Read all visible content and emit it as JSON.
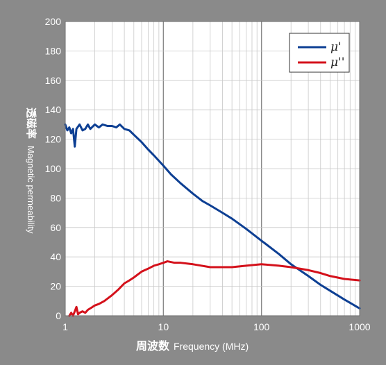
{
  "chart_data": {
    "type": "line",
    "xlabel_ja": "周波数",
    "xlabel_en": "Frequency (MHz)",
    "ylabel_ja": "透磁率",
    "ylabel_en": "Magnetic permeability",
    "x_scale": "log",
    "xlim": [
      1,
      1000
    ],
    "ylim": [
      0,
      200
    ],
    "x_ticks": [
      1,
      10,
      100,
      1000
    ],
    "x_tick_labels": [
      "1",
      "10",
      "100",
      "1000"
    ],
    "y_ticks": [
      0,
      20,
      40,
      60,
      80,
      100,
      120,
      140,
      160,
      180,
      200
    ],
    "y_tick_labels": [
      "0",
      "20",
      "40",
      "60",
      "80",
      "100",
      "120",
      "140",
      "160",
      "180",
      "200"
    ],
    "grid": true,
    "legend_position": "top-right",
    "series": [
      {
        "name": "μ'",
        "color": "#0d3f93",
        "points": [
          [
            1.0,
            130
          ],
          [
            1.05,
            126
          ],
          [
            1.1,
            128
          ],
          [
            1.15,
            124
          ],
          [
            1.2,
            127
          ],
          [
            1.25,
            115
          ],
          [
            1.3,
            127
          ],
          [
            1.4,
            130
          ],
          [
            1.5,
            126
          ],
          [
            1.6,
            127
          ],
          [
            1.7,
            130
          ],
          [
            1.8,
            127
          ],
          [
            2.0,
            130
          ],
          [
            2.2,
            128
          ],
          [
            2.4,
            130
          ],
          [
            2.7,
            129
          ],
          [
            3.0,
            129
          ],
          [
            3.3,
            128
          ],
          [
            3.6,
            130
          ],
          [
            4.0,
            127
          ],
          [
            4.5,
            126
          ],
          [
            5.0,
            123
          ],
          [
            6.0,
            118
          ],
          [
            7.0,
            113
          ],
          [
            8.0,
            109
          ],
          [
            10,
            102
          ],
          [
            12,
            96
          ],
          [
            15,
            90
          ],
          [
            20,
            83
          ],
          [
            25,
            78
          ],
          [
            30,
            75
          ],
          [
            40,
            70
          ],
          [
            50,
            66
          ],
          [
            70,
            59
          ],
          [
            100,
            51
          ],
          [
            150,
            42
          ],
          [
            200,
            35
          ],
          [
            300,
            27
          ],
          [
            400,
            21
          ],
          [
            500,
            17
          ],
          [
            700,
            11
          ],
          [
            1000,
            5
          ]
        ]
      },
      {
        "name": "μ''",
        "color": "#d4111b",
        "points": [
          [
            1.1,
            0
          ],
          [
            1.15,
            2
          ],
          [
            1.2,
            0
          ],
          [
            1.25,
            3
          ],
          [
            1.3,
            6
          ],
          [
            1.35,
            1
          ],
          [
            1.4,
            2
          ],
          [
            1.5,
            3
          ],
          [
            1.6,
            2
          ],
          [
            1.7,
            4
          ],
          [
            1.8,
            5
          ],
          [
            1.9,
            6
          ],
          [
            2.0,
            7
          ],
          [
            2.2,
            8
          ],
          [
            2.5,
            10
          ],
          [
            3.0,
            14
          ],
          [
            3.5,
            18
          ],
          [
            4.0,
            22
          ],
          [
            4.5,
            24
          ],
          [
            5.0,
            26
          ],
          [
            6.0,
            30
          ],
          [
            7.0,
            32
          ],
          [
            8.0,
            34
          ],
          [
            9.0,
            35
          ],
          [
            10,
            36
          ],
          [
            11,
            37
          ],
          [
            13,
            36
          ],
          [
            15,
            36
          ],
          [
            20,
            35
          ],
          [
            30,
            33
          ],
          [
            40,
            33
          ],
          [
            50,
            33
          ],
          [
            70,
            34
          ],
          [
            100,
            35
          ],
          [
            150,
            34
          ],
          [
            200,
            33
          ],
          [
            300,
            31
          ],
          [
            400,
            29
          ],
          [
            500,
            27
          ],
          [
            700,
            25
          ],
          [
            1000,
            24
          ]
        ]
      }
    ]
  }
}
